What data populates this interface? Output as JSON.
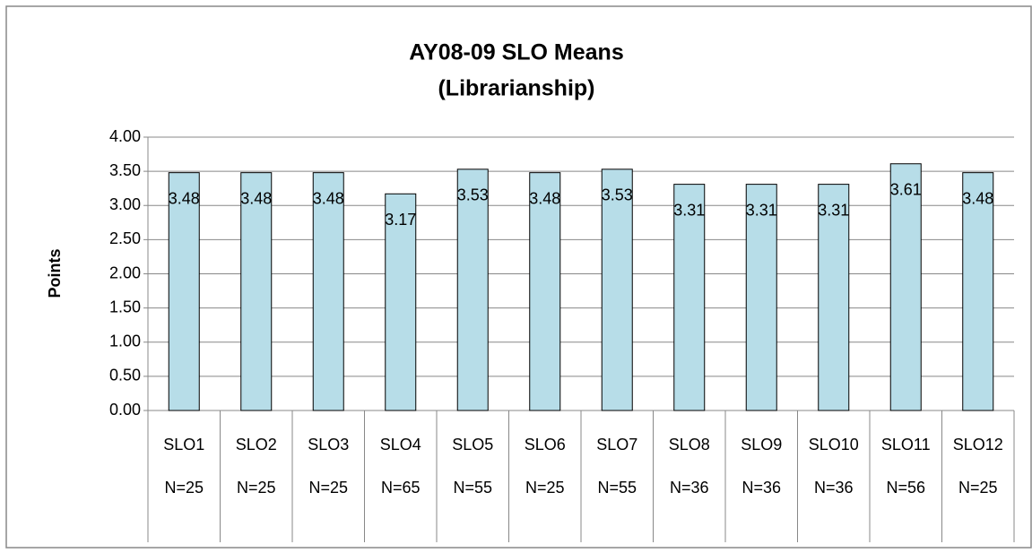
{
  "chart_data": {
    "type": "bar",
    "title": [
      "AY08-09 SLO Means",
      "(Librarianship)"
    ],
    "y_label": "Points",
    "categories": [
      [
        "SLO1",
        "N=25"
      ],
      [
        "SLO2",
        "N=25"
      ],
      [
        "SLO3",
        "N=25"
      ],
      [
        "SLO4",
        "N=65"
      ],
      [
        "SLO5",
        "N=55"
      ],
      [
        "SLO6",
        "N=25"
      ],
      [
        "SLO7",
        "N=55"
      ],
      [
        "SLO8",
        "N=36"
      ],
      [
        "SLO9",
        "N=36"
      ],
      [
        "SLO10",
        "N=36"
      ],
      [
        "SLO11",
        "N=56"
      ],
      [
        "SLO12",
        "N=25"
      ]
    ],
    "values": [
      3.48,
      3.48,
      3.48,
      3.17,
      3.53,
      3.48,
      3.53,
      3.31,
      3.31,
      3.31,
      3.61,
      3.48
    ],
    "color": "#b7dde8",
    "ylim": [
      0,
      4
    ],
    "yticks": [
      {
        "value": 0,
        "label": "0.00"
      },
      {
        "value": 0.5,
        "label": "0.50"
      },
      {
        "value": 1,
        "label": "1.00"
      },
      {
        "value": 1.5,
        "label": "1.50"
      },
      {
        "value": 2,
        "label": "2.00"
      },
      {
        "value": 2.5,
        "label": "2.50"
      },
      {
        "value": 3,
        "label": "3.00"
      },
      {
        "value": 3.5,
        "label": "3.50"
      },
      {
        "value": 4,
        "label": "4.00"
      }
    ],
    "grid": true
  }
}
